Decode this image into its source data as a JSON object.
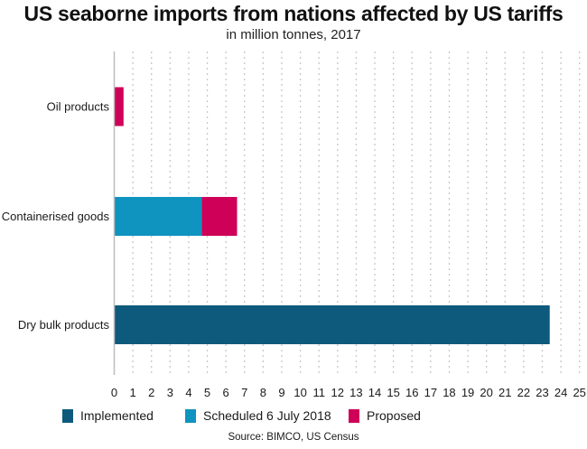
{
  "chart_data": {
    "type": "bar",
    "orientation": "horizontal",
    "stacked": true,
    "title": "US seaborne imports from nations affected by US tariffs",
    "subtitle": "in million tonnes, 2017",
    "xlabel": "",
    "ylabel": "",
    "xlim": [
      0,
      25
    ],
    "xticks": [
      0,
      1,
      2,
      3,
      4,
      5,
      6,
      7,
      8,
      9,
      10,
      11,
      12,
      13,
      14,
      15,
      16,
      17,
      18,
      19,
      20,
      21,
      22,
      23,
      24,
      25
    ],
    "grid": "vertical-dotted",
    "categories": [
      "Oil products",
      "Containerised goods",
      "Dry bulk products"
    ],
    "series": [
      {
        "name": "Implemented",
        "color": "#0e5a7d",
        "values": [
          0,
          0,
          23.4
        ]
      },
      {
        "name": "Scheduled 6 July 2018",
        "color": "#0f93bf",
        "values": [
          0,
          4.7,
          0
        ]
      },
      {
        "name": "Proposed",
        "color": "#cf0057",
        "values": [
          0.5,
          1.9,
          0
        ]
      }
    ],
    "legend_position": "bottom",
    "source": "Source: BIMCO, US Census"
  }
}
